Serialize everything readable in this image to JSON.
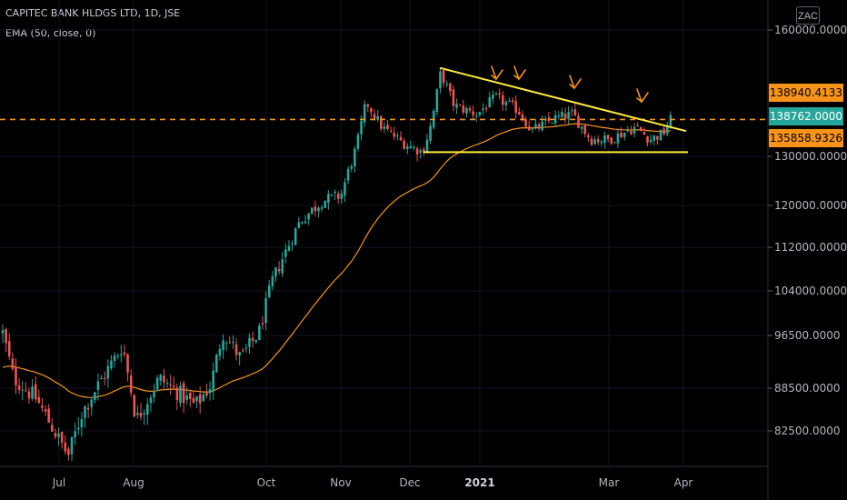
{
  "header": {
    "symbol_line": "CAPITEC BANK HLDGS LTD, 1D, JSE",
    "indicator_line": "EMA (50, close, 0)"
  },
  "currency_label": "ZAC",
  "colors": {
    "background": "#000000",
    "up": "#26a69a",
    "down": "#ef5350",
    "ema": "#f7931a",
    "trendline": "#ffeb3b",
    "dashed_level": "#f7931a",
    "arrow": "#f7931a"
  },
  "chart_data": {
    "type": "candlestick",
    "x_tick_labels": [
      "Jul",
      "Aug",
      "Oct",
      "Nov",
      "Dec",
      "2021",
      "Mar",
      "Apr"
    ],
    "y_tick_labels": [
      "160000.0000",
      "130000.0000",
      "120000.0000",
      "112000.0000",
      "104000.0000",
      "96500.0000",
      "88500.0000",
      "82500.0000"
    ],
    "price_badges": [
      {
        "label": "138940.4133",
        "value": 138940.4133,
        "color": "#f7931a"
      },
      {
        "label": "138762.0000",
        "value": 138762.0,
        "color": "#26a69a"
      },
      {
        "label": "135858.9326",
        "value": 135858.9326,
        "color": "#f7931a"
      }
    ],
    "horizontal_dashed_level": 138762.0,
    "support_level": 131000,
    "descending_trendline": {
      "from_price": 151000,
      "to_price": 136000
    },
    "series": [
      {
        "name": "EMA (50, close, 0)",
        "kind": "line"
      }
    ]
  }
}
